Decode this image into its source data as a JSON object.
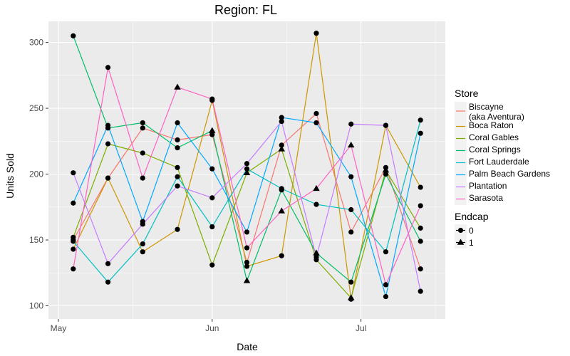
{
  "chart_data": {
    "type": "line",
    "title": "Region: FL",
    "xlabel": "Date",
    "ylabel": "Units Sold",
    "ylim": [
      90,
      316
    ],
    "xlim": [
      "2018-04-29",
      "2018-07-18"
    ],
    "x_ticks": [
      {
        "date": "2018-05-01",
        "label": "May"
      },
      {
        "date": "2018-06-01",
        "label": "Jun"
      },
      {
        "date": "2018-07-01",
        "label": "Jul"
      }
    ],
    "y_ticks": [
      100,
      150,
      200,
      250,
      300
    ],
    "grid": true,
    "x": [
      "2018-05-04",
      "2018-05-11",
      "2018-05-18",
      "2018-05-25",
      "2018-06-01",
      "2018-06-08",
      "2018-06-15",
      "2018-06-22",
      "2018-06-29",
      "2018-07-06",
      "2018-07-13"
    ],
    "series": [
      {
        "name": "Biscayne\n(aka Aventura)",
        "color": "#F8766D",
        "values": [
          150,
          197,
          235,
          226,
          230,
          133,
          222,
          246,
          156,
          205,
          128
        ]
      },
      {
        "name": "Boca Raton",
        "color": "#CD9600",
        "values": [
          143,
          197,
          141,
          158,
          256,
          130,
          138,
          307,
          105,
          237,
          190
        ]
      },
      {
        "name": "Coral Gables",
        "color": "#7CAE00",
        "values": [
          152,
          223,
          216,
          205,
          131,
          201,
          219,
          135,
          106,
          203,
          159
        ]
      },
      {
        "name": "Coral Springs",
        "color": "#00BE67",
        "values": [
          305,
          235,
          239,
          220,
          233,
          119,
          188,
          140,
          118,
          200,
          149
        ]
      },
      {
        "name": "Fort Lauderdale",
        "color": "#00BFC4",
        "values": [
          149,
          118,
          147,
          198,
          160,
          204,
          189,
          177,
          173,
          141,
          241
        ]
      },
      {
        "name": "Palm Beach Gardens",
        "color": "#00A9FF",
        "values": [
          178,
          237,
          164,
          239,
          204,
          156,
          243,
          239,
          198,
          107,
          231
        ]
      },
      {
        "name": "Plantation",
        "color": "#C77CFF",
        "values": [
          201,
          132,
          162,
          191,
          182,
          208,
          240,
          137,
          238,
          237,
          111
        ]
      },
      {
        "name": "Sarasota",
        "color": "#FF61C3",
        "values": [
          128,
          281,
          197,
          266,
          257,
          144,
          172,
          189,
          222,
          116,
          176
        ]
      }
    ],
    "endcap_triangles": [
      {
        "series": "Sarasota",
        "x": "2018-05-25"
      },
      {
        "series": "Coral Springs",
        "x": "2018-06-01"
      },
      {
        "series": "Coral Springs",
        "x": "2018-06-08"
      },
      {
        "series": "Coral Gables",
        "x": "2018-06-08"
      },
      {
        "series": "Coral Gables",
        "x": "2018-06-15"
      },
      {
        "series": "Sarasota",
        "x": "2018-06-15"
      },
      {
        "series": "Sarasota",
        "x": "2018-06-22"
      },
      {
        "series": "Coral Springs",
        "x": "2018-06-22"
      },
      {
        "series": "Sarasota",
        "x": "2018-06-29"
      },
      {
        "series": "Coral Gables",
        "x": "2018-06-29"
      },
      {
        "series": "Coral Gables",
        "x": "2018-07-06"
      }
    ],
    "legend": {
      "placement": "right",
      "color_title": "Store",
      "shape_title": "Endcap",
      "shape_entries": [
        {
          "label": "0",
          "shape": "circle"
        },
        {
          "label": "1",
          "shape": "triangle"
        }
      ]
    },
    "panel_color": "#EBEBEB",
    "grid_color": "#FFFFFF"
  }
}
